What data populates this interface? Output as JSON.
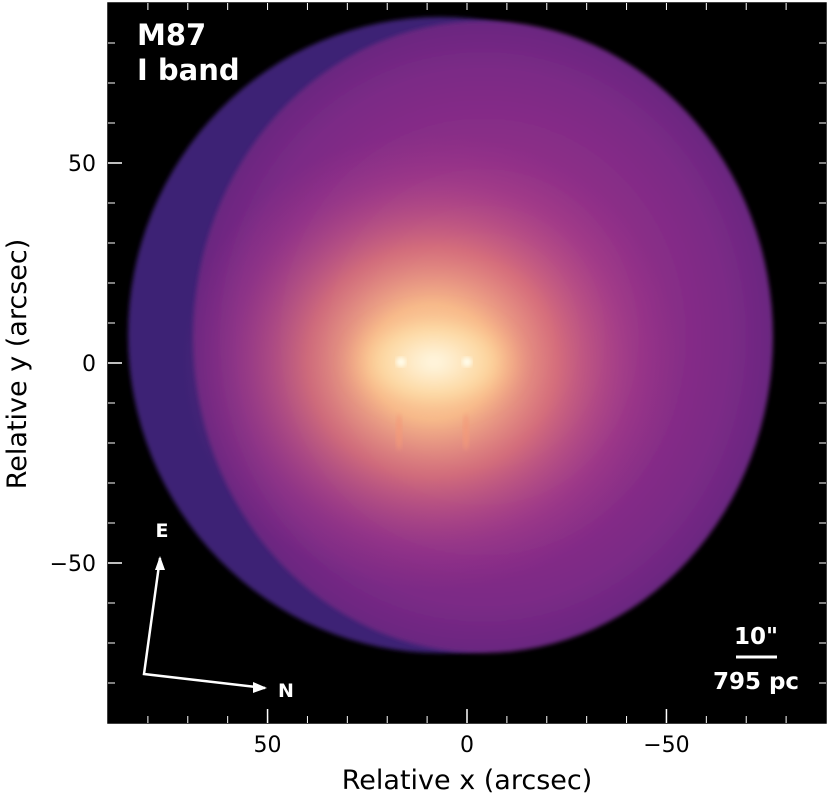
{
  "title": "M87",
  "subtitle": "I band",
  "xlabel": "Relative x (arcsec)",
  "ylabel": "Relative y (arcsec)",
  "x_ticks": [
    "50",
    "0",
    "−50"
  ],
  "y_ticks": [
    "50",
    "0",
    "−50"
  ],
  "x_tick_values": [
    50,
    0,
    -50
  ],
  "y_tick_values": [
    50,
    0,
    -50
  ],
  "x_range": [
    90,
    -90
  ],
  "y_range": [
    -90,
    90
  ],
  "compass": {
    "east": "E",
    "north": "N"
  },
  "scale_bar": {
    "angular": "10\"",
    "physical": "795 pc"
  },
  "colors": {
    "background": "#000000",
    "disk_edge": "#3a1a6e",
    "disk_outer": "#6a2a8e",
    "disk_mid": "#a23a8a",
    "core": "#fbd59a",
    "core_center": "#fff6da",
    "text": "#ffffff"
  }
}
